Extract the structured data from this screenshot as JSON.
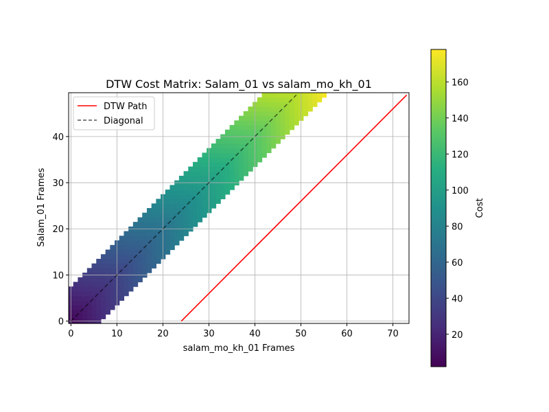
{
  "chart_data": {
    "type": "heatmap",
    "title": "DTW Cost Matrix: Salam_01 vs salam_mo_kh_01",
    "xlabel": "salam_mo_kh_01 Frames",
    "ylabel": "Salam_01 Frames",
    "xlim": [
      -0.5,
      73.5
    ],
    "ylim": [
      -0.5,
      49.5
    ],
    "x_ticks": [
      0,
      10,
      20,
      30,
      40,
      50,
      60,
      70
    ],
    "y_ticks": [
      0,
      10,
      20,
      30,
      40
    ],
    "grid": true,
    "colormap": "viridis",
    "matrix": {
      "rows": 50,
      "cols": 74,
      "band_lower_offset": -7,
      "band_upper_offset": 6,
      "cost_range": [
        2,
        178
      ],
      "note_cost_grows_along_diagonal": true
    },
    "series": [
      {
        "name": "DTW Path",
        "color": "#ff0000",
        "style": "solid",
        "x": [
          24,
          73
        ],
        "y": [
          0,
          49
        ]
      },
      {
        "name": "Diagonal",
        "color": "#000000",
        "style": "dashed",
        "x": [
          0,
          49
        ],
        "y": [
          0,
          49
        ]
      }
    ],
    "legend": {
      "placement": "upper-left"
    },
    "colorbar": {
      "label": "Cost",
      "ticks": [
        20,
        40,
        60,
        80,
        100,
        120,
        140,
        160
      ],
      "range": [
        2,
        178
      ]
    }
  }
}
